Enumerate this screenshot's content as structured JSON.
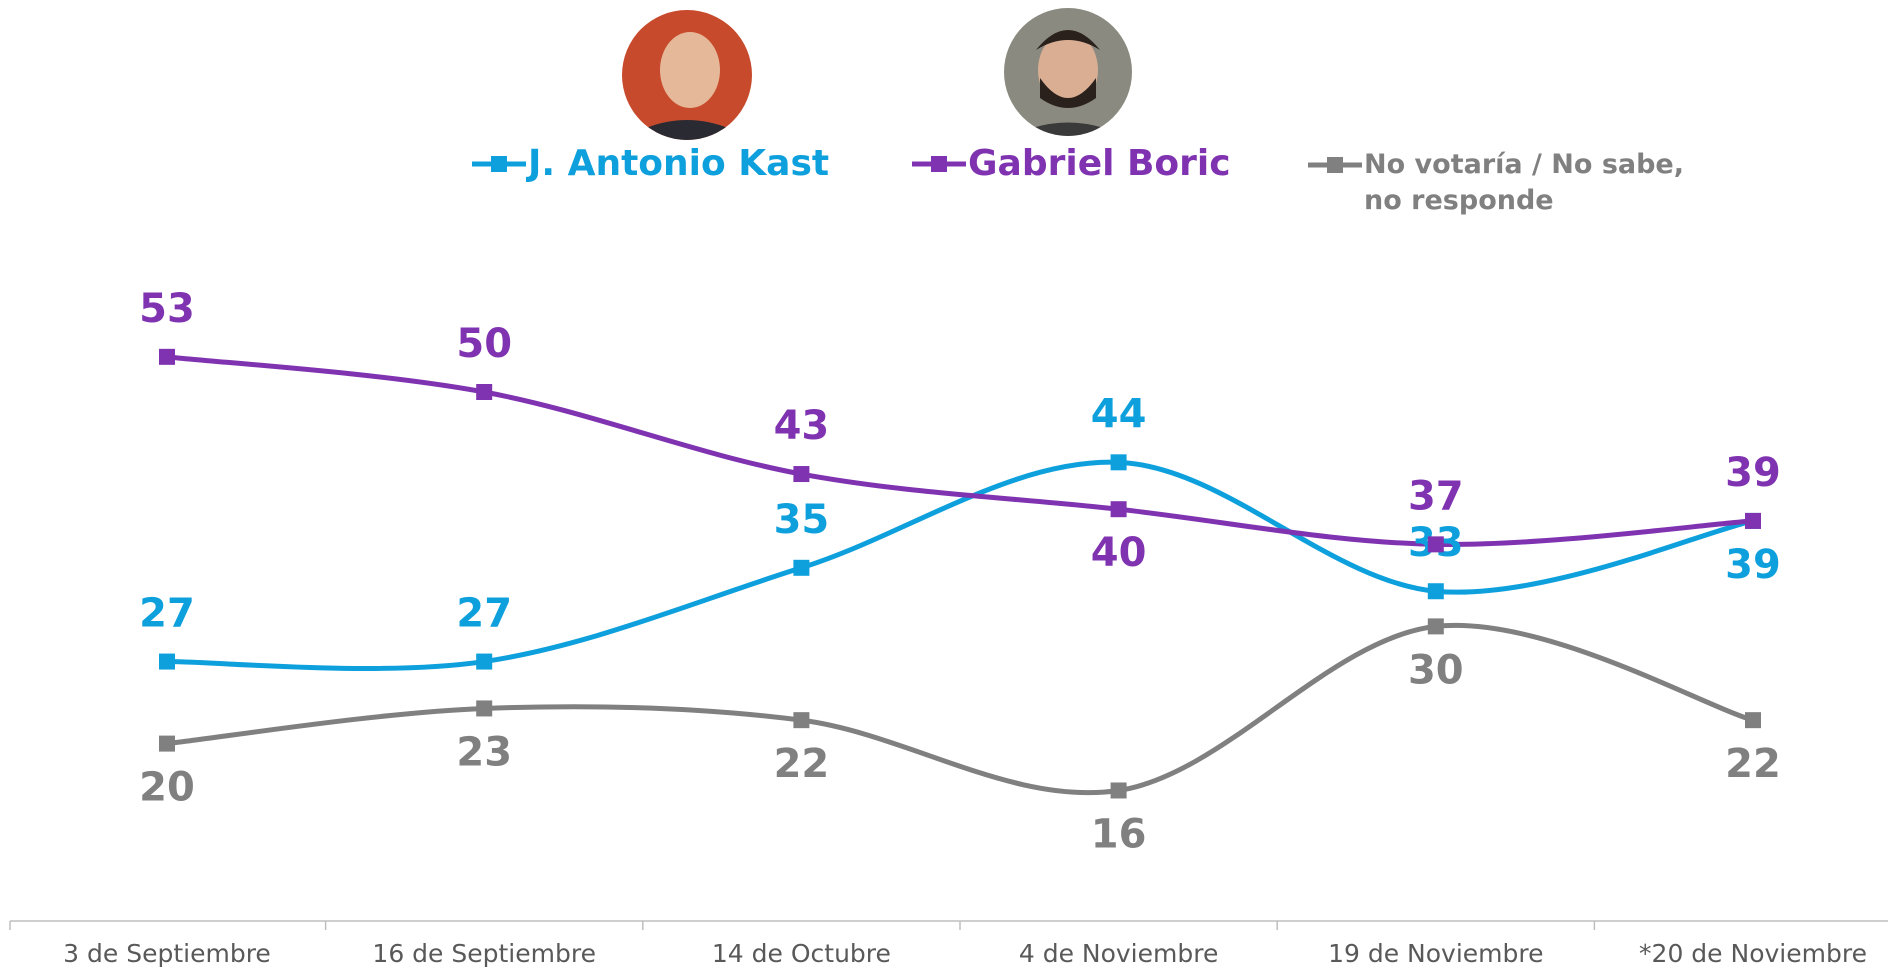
{
  "chart_data": {
    "type": "line",
    "categories": [
      "3 de Septiembre",
      "16 de Septiembre",
      "14 de Octubre",
      "4 de Noviembre",
      "19 de Noviembre",
      "*20 de Noviembre"
    ],
    "series": [
      {
        "name": "J. Antonio Kast",
        "color": "#0ea0dc",
        "values": [
          27,
          27,
          35,
          44,
          33,
          39
        ]
      },
      {
        "name": "Gabriel Boric",
        "color": "#8033b0",
        "values": [
          53,
          50,
          43,
          40,
          37,
          39
        ]
      },
      {
        "name": "No votaría / No sabe, no responde",
        "color": "#808080",
        "values": [
          20,
          23,
          22,
          16,
          30,
          22
        ]
      }
    ]
  }
}
